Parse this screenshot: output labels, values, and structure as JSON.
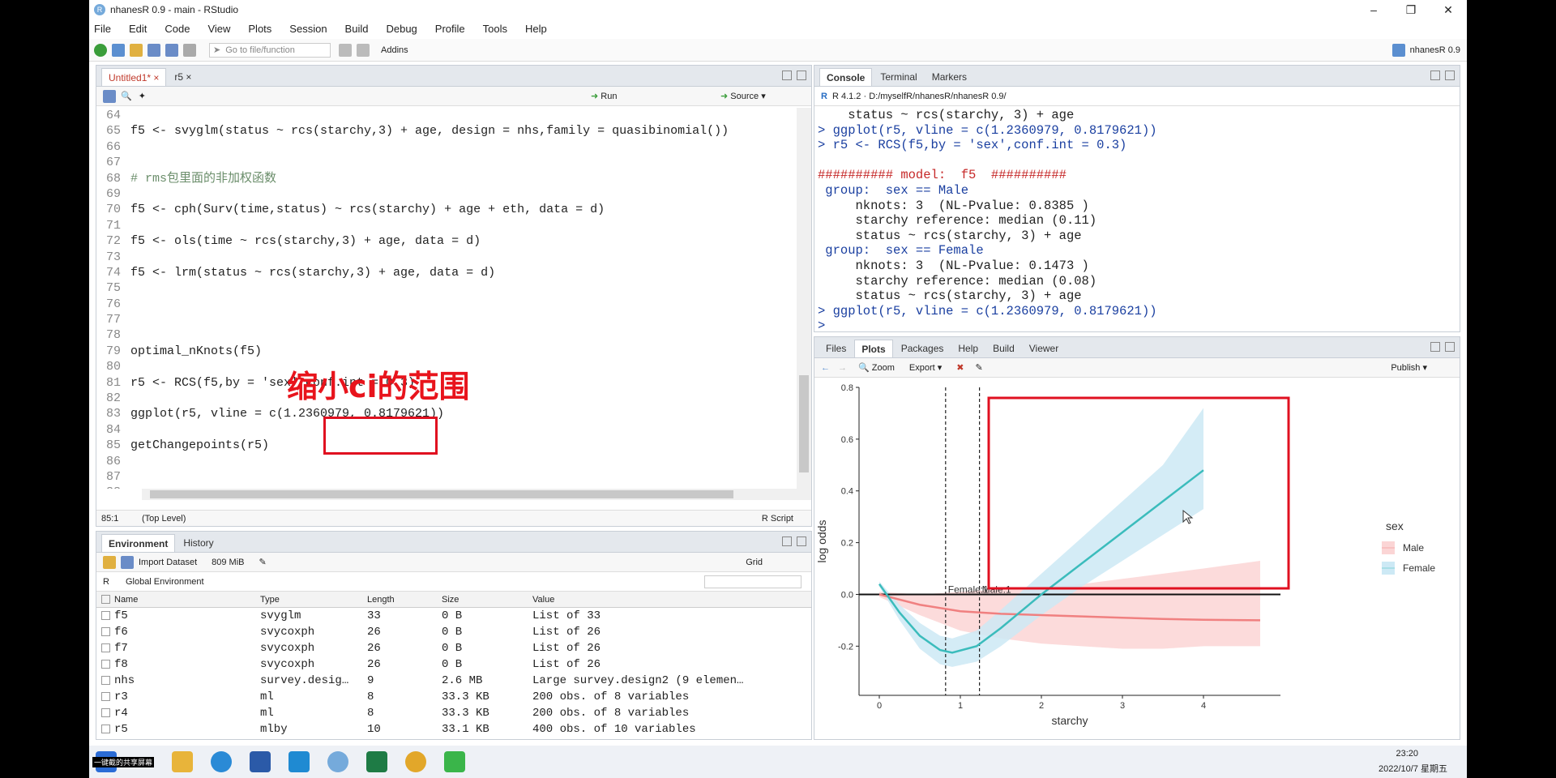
{
  "window": {
    "title": "nhanesR 0.9 - main - RStudio"
  },
  "menu": [
    "File",
    "Edit",
    "Code",
    "View",
    "Plots",
    "Session",
    "Build",
    "Debug",
    "Profile",
    "Tools",
    "Help"
  ],
  "toolbar": {
    "goto_placeholder": "Go to file/function",
    "addins": "Addins",
    "project": "nhanesR 0.9"
  },
  "editor": {
    "tabs": [
      "Untitled1*",
      "r5"
    ],
    "run": "Run",
    "source": "Source",
    "lines": [
      {
        "n": "64",
        "t": ""
      },
      {
        "n": "65",
        "t": "f5 <- svyglm(status ~ rcs(starchy,3) + age, design = nhs,family = quasibinomial())"
      },
      {
        "n": "66",
        "t": ""
      },
      {
        "n": "67",
        "t": ""
      },
      {
        "n": "68",
        "t": "# rms包里面的非加权函数"
      },
      {
        "n": "69",
        "t": ""
      },
      {
        "n": "70",
        "t": "f5 <- cph(Surv(time,status) ~ rcs(starchy) + age + eth, data = d)"
      },
      {
        "n": "71",
        "t": ""
      },
      {
        "n": "72",
        "t": "f5 <- ols(time ~ rcs(starchy,3) + age, data = d)"
      },
      {
        "n": "73",
        "t": ""
      },
      {
        "n": "74",
        "t": "f5 <- lrm(status ~ rcs(starchy,3) + age, data = d)"
      },
      {
        "n": "75",
        "t": ""
      },
      {
        "n": "76",
        "t": ""
      },
      {
        "n": "77",
        "t": ""
      },
      {
        "n": "78",
        "t": ""
      },
      {
        "n": "79",
        "t": "optimal_nKnots(f5)"
      },
      {
        "n": "80",
        "t": ""
      },
      {
        "n": "81",
        "t": "r5 <- RCS(f5,by = 'sex',conf.int = 0.3)"
      },
      {
        "n": "82",
        "t": ""
      },
      {
        "n": "83",
        "t": "ggplot(r5, vline = c(1.2360979, 0.8179621))"
      },
      {
        "n": "84",
        "t": ""
      },
      {
        "n": "85",
        "t": "getChangepoints(r5)"
      },
      {
        "n": "86",
        "t": ""
      },
      {
        "n": "87",
        "t": ""
      },
      {
        "n": "88",
        "t": ""
      }
    ],
    "status_pos": "85:1",
    "status_level": "(Top Level)",
    "status_type": "R Script",
    "annotation": "缩小ci的范围"
  },
  "environment": {
    "tabs": [
      "Environment",
      "History"
    ],
    "import": "Import Dataset",
    "memory": "809 MiB",
    "view": "Grid",
    "scope": "Global Environment",
    "lang": "R",
    "headers": [
      "Name",
      "Type",
      "Length",
      "Size",
      "Value"
    ],
    "rows": [
      [
        "f5",
        "svyglm",
        "33",
        "0 B",
        "List of 33"
      ],
      [
        "f6",
        "svycoxph",
        "26",
        "0 B",
        "List of 26"
      ],
      [
        "f7",
        "svycoxph",
        "26",
        "0 B",
        "List of 26"
      ],
      [
        "f8",
        "svycoxph",
        "26",
        "0 B",
        "List of 26"
      ],
      [
        "nhs",
        "survey.desig…",
        "9",
        "2.6 MB",
        "Large survey.design2 (9 elemen…"
      ],
      [
        "r3",
        "ml",
        "8",
        "33.3 KB",
        "200 obs. of 8 variables"
      ],
      [
        "r4",
        "ml",
        "8",
        "33.3 KB",
        "200 obs. of 8 variables"
      ],
      [
        "r5",
        "mlby",
        "10",
        "33.1 KB",
        "400 obs. of 10 variables"
      ]
    ]
  },
  "console": {
    "tabs": [
      "Console",
      "Terminal",
      "Markers"
    ],
    "version": "R 4.1.2 · D:/myselfR/nhanesR/nhanesR 0.9/",
    "lines": [
      {
        "t": "    status ~ rcs(starchy, 3) + age",
        "c": ""
      },
      {
        "t": "> ggplot(r5, vline = c(1.2360979, 0.8179621))",
        "c": "cmd"
      },
      {
        "t": "> r5 <- RCS(f5,by = 'sex',conf.int = 0.3)",
        "c": "cmd"
      },
      {
        "t": "",
        "c": ""
      },
      {
        "t": "########## model:  f5  ##########",
        "c": "red"
      },
      {
        "t": " group:  sex == Male",
        "c": "cmd"
      },
      {
        "t": "     nknots: 3  (NL-Pvalue: 0.8385 )",
        "c": ""
      },
      {
        "t": "     starchy reference: median (0.11)",
        "c": ""
      },
      {
        "t": "     status ~ rcs(starchy, 3) + age",
        "c": ""
      },
      {
        "t": " group:  sex == Female",
        "c": "cmd"
      },
      {
        "t": "     nknots: 3  (NL-Pvalue: 0.1473 )",
        "c": ""
      },
      {
        "t": "     starchy reference: median (0.08)",
        "c": ""
      },
      {
        "t": "     status ~ rcs(starchy, 3) + age",
        "c": ""
      },
      {
        "t": "> ggplot(r5, vline = c(1.2360979, 0.8179621))",
        "c": "cmd"
      },
      {
        "t": ">",
        "c": "cmd"
      }
    ]
  },
  "files": {
    "tabs": [
      "Files",
      "Plots",
      "Packages",
      "Help",
      "Build",
      "Viewer"
    ],
    "zoom": "Zoom",
    "export": "Export",
    "publish": "Publish"
  },
  "chart_data": {
    "type": "line",
    "xlabel": "starchy",
    "ylabel": "log odds",
    "xlim": [
      -0.25,
      4.95
    ],
    "ylim": [
      -0.39,
      0.8
    ],
    "xticks": [
      0,
      1,
      2,
      3,
      4
    ],
    "yticks": [
      -0.2,
      0.0,
      0.2,
      0.4,
      0.6,
      0.8
    ],
    "ytick_labels": [
      "-0.2",
      "0.0",
      "0.2",
      "0.4",
      "0.6",
      "0.8"
    ],
    "legend_title": "sex",
    "legend_position": "right",
    "series": [
      {
        "name": "Male",
        "color": "#f08080",
        "band_color": "#fbd5d5",
        "x": [
          0,
          0.5,
          1.0,
          1.5,
          2.0,
          2.5,
          3.0,
          3.5,
          4.0,
          4.7
        ],
        "y": [
          0.0,
          -0.04,
          -0.065,
          -0.075,
          -0.08,
          -0.085,
          -0.09,
          -0.095,
          -0.098,
          -0.1
        ],
        "lower": [
          -0.01,
          -0.08,
          -0.14,
          -0.17,
          -0.19,
          -0.2,
          -0.21,
          -0.21,
          -0.2,
          -0.2
        ],
        "upper": [
          0.01,
          0.0,
          0.01,
          0.02,
          0.03,
          0.04,
          0.06,
          0.08,
          0.1,
          0.13
        ]
      },
      {
        "name": "Female",
        "color": "#3bbcbc",
        "band_color": "#cde9f5",
        "x": [
          0,
          0.25,
          0.5,
          0.75,
          0.9,
          1.2,
          1.5,
          2.0,
          2.5,
          3.0,
          3.5,
          4.0
        ],
        "y": [
          0.04,
          -0.07,
          -0.16,
          -0.215,
          -0.225,
          -0.2,
          -0.13,
          0.0,
          0.12,
          0.24,
          0.36,
          0.48
        ],
        "lower": [
          0.03,
          -0.1,
          -0.21,
          -0.27,
          -0.28,
          -0.26,
          -0.2,
          -0.08,
          0.03,
          0.13,
          0.23,
          0.33
        ],
        "upper": [
          0.05,
          -0.04,
          -0.11,
          -0.16,
          -0.17,
          -0.14,
          -0.06,
          0.08,
          0.22,
          0.36,
          0.5,
          0.72
        ]
      }
    ],
    "vlines": [
      0.8179621,
      1.2360979
    ],
    "hline": 0,
    "annotations": [
      {
        "text": "Female:1",
        "x": 0.8179621,
        "y": 0
      },
      {
        "text": "Male:1",
        "x": 1.2360979,
        "y": 0
      }
    ]
  },
  "taskbar": {
    "time": "23:20",
    "date": "2022/10/7 星期五",
    "label": "一键截的共享屏幕"
  }
}
